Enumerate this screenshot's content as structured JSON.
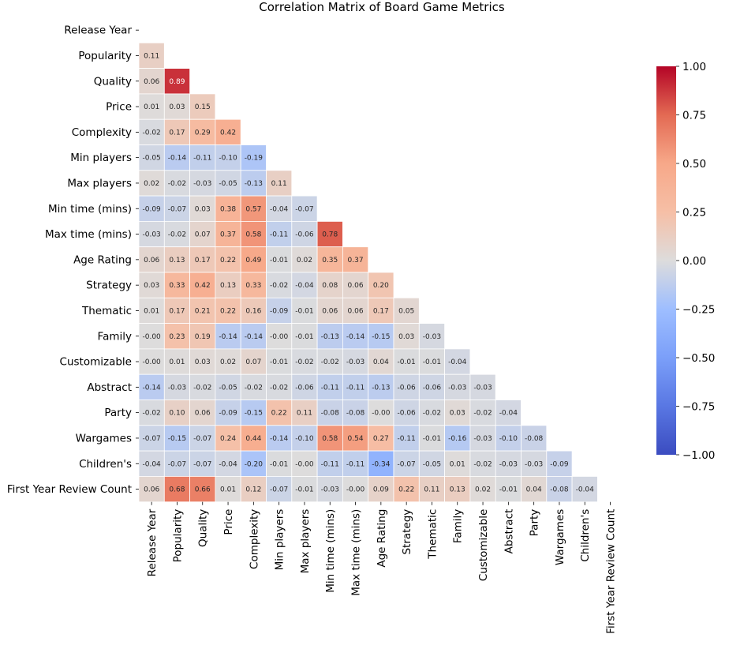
{
  "chart_data": {
    "type": "heatmap",
    "title": "Correlation Matrix of Board Game Metrics",
    "mask": "upper-triangle-including-diagonal",
    "labels": [
      "Release Year",
      "Popularity",
      "Quality",
      "Price",
      "Complexity",
      "Min players",
      "Max players",
      "Min time (mins)",
      "Max time (mins)",
      "Age Rating",
      "Strategy",
      "Thematic",
      "Family",
      "Customizable",
      "Abstract",
      "Party",
      "Wargames",
      "Children's",
      "First Year Review Count"
    ],
    "matrix": [
      [],
      [
        0.11
      ],
      [
        0.06,
        0.89
      ],
      [
        0.01,
        0.03,
        0.15
      ],
      [
        -0.02,
        0.17,
        0.29,
        0.42
      ],
      [
        -0.05,
        -0.14,
        -0.11,
        -0.1,
        -0.19
      ],
      [
        0.02,
        -0.02,
        -0.03,
        -0.05,
        -0.13,
        0.11
      ],
      [
        -0.09,
        -0.07,
        0.03,
        0.38,
        0.57,
        -0.04,
        -0.07
      ],
      [
        -0.03,
        -0.02,
        0.07,
        0.37,
        0.58,
        -0.11,
        -0.06,
        0.78
      ],
      [
        0.06,
        0.13,
        0.17,
        0.22,
        0.49,
        -0.01,
        0.02,
        0.35,
        0.37
      ],
      [
        0.03,
        0.33,
        0.42,
        0.13,
        0.33,
        -0.02,
        -0.04,
        0.08,
        0.06,
        0.2
      ],
      [
        0.01,
        0.17,
        0.21,
        0.22,
        0.16,
        -0.09,
        -0.01,
        0.06,
        0.06,
        0.17,
        0.05
      ],
      [
        -0.0,
        0.23,
        0.19,
        -0.14,
        -0.14,
        -0.0,
        -0.01,
        -0.13,
        -0.14,
        -0.15,
        0.03,
        -0.03
      ],
      [
        -0.0,
        0.01,
        0.03,
        0.02,
        0.07,
        -0.01,
        -0.02,
        -0.02,
        -0.03,
        0.04,
        -0.01,
        -0.01,
        -0.04
      ],
      [
        -0.14,
        -0.03,
        -0.02,
        -0.05,
        -0.02,
        -0.02,
        -0.06,
        -0.11,
        -0.11,
        -0.13,
        -0.06,
        -0.06,
        -0.03,
        -0.03
      ],
      [
        -0.02,
        0.1,
        0.06,
        -0.09,
        -0.15,
        0.22,
        0.11,
        -0.08,
        -0.08,
        -0.0,
        -0.06,
        -0.02,
        0.03,
        -0.02,
        -0.04
      ],
      [
        -0.07,
        -0.15,
        -0.07,
        0.24,
        0.44,
        -0.14,
        -0.1,
        0.58,
        0.54,
        0.27,
        -0.11,
        -0.01,
        -0.16,
        -0.03,
        -0.1,
        -0.08
      ],
      [
        -0.04,
        -0.07,
        -0.07,
        -0.04,
        -0.2,
        -0.01,
        -0.0,
        -0.11,
        -0.11,
        -0.34,
        -0.07,
        -0.05,
        0.01,
        -0.02,
        -0.03,
        -0.03,
        -0.09
      ],
      [
        0.06,
        0.68,
        0.66,
        0.01,
        0.12,
        -0.07,
        -0.01,
        -0.03,
        -0.0,
        0.09,
        0.22,
        0.11,
        0.13,
        0.02,
        -0.01,
        0.04,
        -0.08,
        -0.04
      ]
    ],
    "colorbar": {
      "colormap": "coolwarm",
      "vmin": -1.0,
      "vmax": 1.0,
      "ticks": [
        "1.00",
        "0.75",
        "0.50",
        "0.25",
        "0.00",
        "−0.25",
        "−0.50",
        "−0.75",
        "−1.00"
      ]
    }
  }
}
